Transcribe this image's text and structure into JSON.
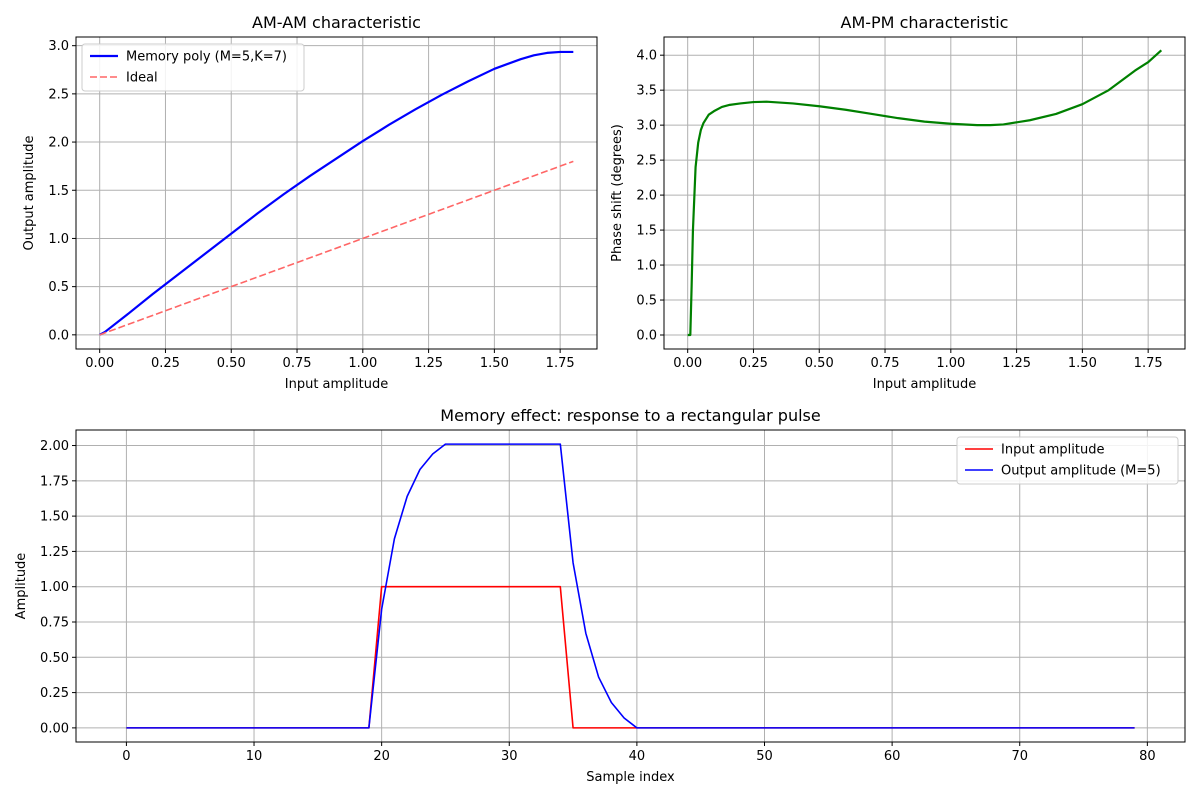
{
  "colors": {
    "amam": "#0000ff",
    "ideal": "#ff6666",
    "ampm": "#008000",
    "input": "#ff0000",
    "output": "#0000ff",
    "grid": "#b0b0b0"
  },
  "chart_data": [
    {
      "type": "line",
      "title": "AM-AM characteristic",
      "xlabel": "Input amplitude",
      "ylabel": "Output amplitude",
      "xlim": [
        -0.09,
        1.89
      ],
      "ylim": [
        -0.147,
        3.09
      ],
      "xticks": [
        0.0,
        0.25,
        0.5,
        0.75,
        1.0,
        1.25,
        1.5,
        1.75
      ],
      "yticks": [
        0.0,
        0.5,
        1.0,
        1.5,
        2.0,
        2.5,
        3.0
      ],
      "xtick_labels": [
        "0.00",
        "0.25",
        "0.50",
        "0.75",
        "1.00",
        "1.25",
        "1.50",
        "1.75"
      ],
      "ytick_labels": [
        "0.0",
        "0.5",
        "1.0",
        "1.5",
        "2.0",
        "2.5",
        "3.0"
      ],
      "grid": true,
      "legend": "top-left",
      "series": [
        {
          "name": "Memory poly (M=5,K=7)",
          "style": "solid",
          "color": "#0000ff",
          "x": [
            0.0,
            0.02,
            0.1,
            0.2,
            0.3,
            0.4,
            0.5,
            0.6,
            0.7,
            0.8,
            0.9,
            1.0,
            1.1,
            1.2,
            1.3,
            1.4,
            1.5,
            1.6,
            1.65,
            1.7,
            1.75,
            1.8
          ],
          "y": [
            0.0,
            0.03,
            0.2,
            0.42,
            0.63,
            0.84,
            1.05,
            1.26,
            1.46,
            1.65,
            1.83,
            2.01,
            2.18,
            2.34,
            2.49,
            2.63,
            2.76,
            2.86,
            2.9,
            2.925,
            2.935,
            2.935
          ]
        },
        {
          "name": "Ideal",
          "style": "dashed",
          "color": "#ff6666",
          "x": [
            0.0,
            1.8
          ],
          "y": [
            0.0,
            1.8
          ]
        }
      ]
    },
    {
      "type": "line",
      "title": "AM-PM characteristic",
      "xlabel": "Input amplitude",
      "ylabel": "Phase shift (degrees)",
      "xlim": [
        -0.09,
        1.89
      ],
      "ylim": [
        -0.2,
        4.26
      ],
      "xticks": [
        0.0,
        0.25,
        0.5,
        0.75,
        1.0,
        1.25,
        1.5,
        1.75
      ],
      "yticks": [
        0.0,
        0.5,
        1.0,
        1.5,
        2.0,
        2.5,
        3.0,
        3.5,
        4.0
      ],
      "xtick_labels": [
        "0.00",
        "0.25",
        "0.50",
        "0.75",
        "1.00",
        "1.25",
        "1.50",
        "1.75"
      ],
      "ytick_labels": [
        "0.0",
        "0.5",
        "1.0",
        "1.5",
        "2.0",
        "2.5",
        "3.0",
        "3.5",
        "4.0"
      ],
      "grid": true,
      "series": [
        {
          "name": "",
          "style": "solid",
          "color": "#008000",
          "x": [
            0.0,
            0.01,
            0.015,
            0.02,
            0.03,
            0.04,
            0.05,
            0.06,
            0.08,
            0.1,
            0.13,
            0.16,
            0.2,
            0.25,
            0.3,
            0.4,
            0.5,
            0.6,
            0.7,
            0.8,
            0.9,
            1.0,
            1.1,
            1.15,
            1.2,
            1.3,
            1.4,
            1.5,
            1.6,
            1.7,
            1.75,
            1.8
          ],
          "y": [
            0.0,
            0.0,
            0.7,
            1.5,
            2.4,
            2.75,
            2.93,
            3.03,
            3.15,
            3.2,
            3.26,
            3.29,
            3.31,
            3.33,
            3.335,
            3.31,
            3.27,
            3.22,
            3.16,
            3.1,
            3.05,
            3.02,
            3.0,
            3.0,
            3.01,
            3.07,
            3.16,
            3.3,
            3.5,
            3.78,
            3.9,
            4.07
          ]
        }
      ]
    },
    {
      "type": "line",
      "title": "Memory effect: response to a rectangular pulse",
      "xlabel": "Sample index",
      "ylabel": "Amplitude",
      "xlim": [
        -3.95,
        82.95
      ],
      "ylim": [
        -0.1,
        2.11
      ],
      "xticks": [
        0,
        10,
        20,
        30,
        40,
        50,
        60,
        70,
        80
      ],
      "yticks": [
        0.0,
        0.25,
        0.5,
        0.75,
        1.0,
        1.25,
        1.5,
        1.75,
        2.0
      ],
      "xtick_labels": [
        "0",
        "10",
        "20",
        "30",
        "40",
        "50",
        "60",
        "70",
        "80"
      ],
      "ytick_labels": [
        "0.00",
        "0.25",
        "0.50",
        "0.75",
        "1.00",
        "1.25",
        "1.50",
        "1.75",
        "2.00"
      ],
      "grid": true,
      "legend": "top-right",
      "series": [
        {
          "name": "Input amplitude",
          "style": "solid",
          "color": "#ff0000",
          "x": [
            0,
            19,
            20,
            34,
            35,
            79
          ],
          "y": [
            0.0,
            0.0,
            1.0,
            1.0,
            0.0,
            0.0
          ]
        },
        {
          "name": "Output amplitude (M=5)",
          "style": "solid",
          "color": "#0000ff",
          "x": [
            0,
            19,
            20,
            21,
            22,
            23,
            24,
            25,
            34,
            35,
            36,
            37,
            38,
            39,
            40,
            79
          ],
          "y": [
            0.0,
            0.0,
            0.84,
            1.34,
            1.64,
            1.83,
            1.94,
            2.01,
            2.01,
            1.17,
            0.67,
            0.36,
            0.18,
            0.07,
            0.0,
            0.0
          ]
        }
      ]
    }
  ]
}
